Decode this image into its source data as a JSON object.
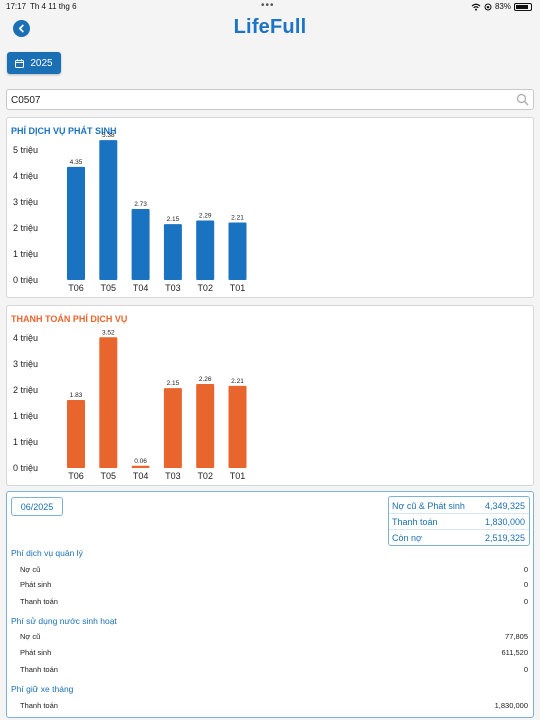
{
  "status_bar": {
    "time": "17:17",
    "date": "Th 4 11 thg 6",
    "battery": "83%"
  },
  "app": {
    "title": "LifeFull",
    "brand_color": "#1b74c5"
  },
  "year_filter": {
    "label": "2025"
  },
  "search": {
    "value": "C0507",
    "placeholder": ""
  },
  "chart_data": [
    {
      "type": "bar",
      "title": "PHÍ DỊCH VỤ PHÁT SINH",
      "categories": [
        "T06",
        "T05",
        "T04",
        "T03",
        "T02",
        "T01"
      ],
      "values": [
        4.35,
        5.38,
        2.73,
        2.15,
        2.29,
        2.21
      ],
      "data_labels": [
        "4.35",
        "5.38",
        "2.73",
        "2.15",
        "2.29",
        "2.21"
      ],
      "ytick_labels": [
        "0 triệu",
        "1 triệu",
        "2 triệu",
        "3 triệu",
        "4 triệu",
        "5 triệu"
      ],
      "ylim": [
        0,
        5
      ],
      "color": "#1a73c0",
      "title_color": "#1a73c0"
    },
    {
      "type": "bar",
      "title": "THANH TOÁN PHÍ DỊCH VỤ",
      "categories": [
        "T06",
        "T05",
        "T04",
        "T03",
        "T02",
        "T01"
      ],
      "values": [
        1.83,
        3.52,
        0.06,
        2.15,
        2.26,
        2.21
      ],
      "data_labels": [
        "1.83",
        "3.52",
        "0.06",
        "2.15",
        "2.26",
        "2.21"
      ],
      "ytick_labels": [
        "0 triệu",
        "1 triệu",
        "1 triệu",
        "2 triệu",
        "3 triệu",
        "4 triệu"
      ],
      "ytick_values": [
        0,
        0.7,
        1.4,
        2.1,
        2.8,
        3.5
      ],
      "ylim": [
        0,
        3.5
      ],
      "color": "#e8662d",
      "title_color": "#e8662d"
    }
  ],
  "detail": {
    "month": "06/2025",
    "summary": [
      {
        "label": "Nợ cũ & Phát sinh",
        "value": "4,349,325"
      },
      {
        "label": "Thanh toán",
        "value": "1,830,000"
      },
      {
        "label": "Còn nợ",
        "value": "2,519,325"
      }
    ],
    "sections": [
      {
        "title": "Phí dịch vụ quản lý",
        "lines": [
          {
            "label": "Nợ cũ",
            "value": "0"
          },
          {
            "label": "Phát sinh",
            "value": "0"
          },
          {
            "label": "Thanh toán",
            "value": "0"
          }
        ]
      },
      {
        "title": "Phí sử dụng nước sinh hoạt",
        "lines": [
          {
            "label": "Nợ cũ",
            "value": "77,805"
          },
          {
            "label": "Phát sinh",
            "value": "611,520"
          },
          {
            "label": "Thanh toán",
            "value": "0"
          }
        ]
      },
      {
        "title": "Phí giữ xe tháng",
        "lines": [
          {
            "label": "Thanh toán",
            "value": "1,830,000"
          }
        ]
      }
    ]
  }
}
